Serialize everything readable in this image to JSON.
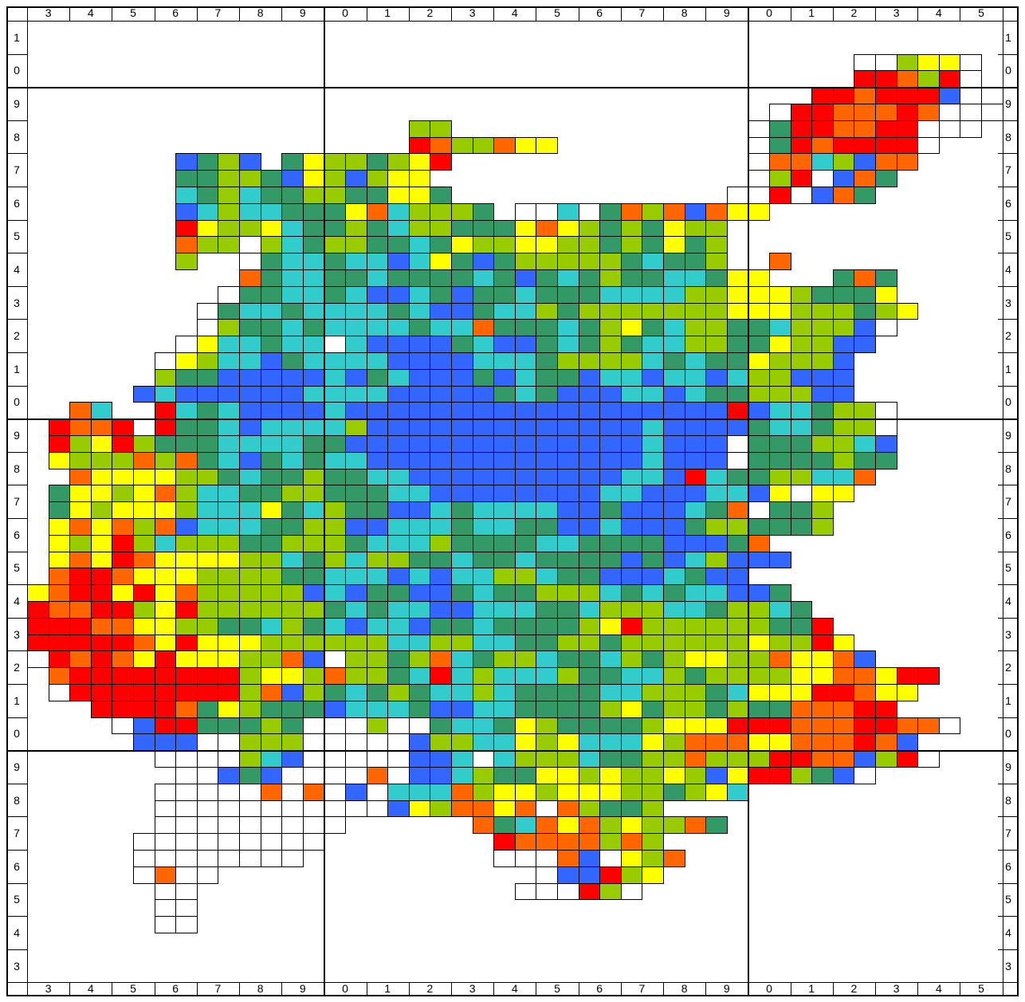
{
  "map": {
    "col_labels": [
      "3",
      "4",
      "5",
      "6",
      "7",
      "8",
      "9",
      "0",
      "1",
      "2",
      "3",
      "4",
      "5",
      "6",
      "7",
      "8",
      "9",
      "0",
      "1",
      "2",
      "3",
      "4",
      "5"
    ],
    "row_labels": [
      "1",
      "0",
      "9",
      "8",
      "7",
      "6",
      "5",
      "4",
      "3",
      "2",
      "1",
      "0",
      "9",
      "8",
      "7",
      "6",
      "5",
      "4",
      "3",
      "2",
      "1",
      "0",
      "9",
      "8",
      "7",
      "6",
      "5",
      "4",
      "3"
    ],
    "major_col_after": [
      7,
      17
    ],
    "major_row_after": [
      2,
      12,
      22
    ],
    "palette": {
      "W": "#ffffff",
      "R": "#ff0000",
      "O": "#ff6600",
      "Y": "#ffff00",
      "L": "#99cc00",
      "G": "#339966",
      "C": "#33cccc",
      "B": "#3366ff"
    },
    "grid": [
      ".......................",
      "...............................................WWLYYW...",
      "..........................................................",
      "..."
    ]
  }
}
